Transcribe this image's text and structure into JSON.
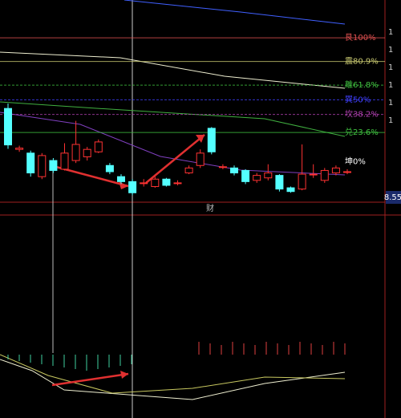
{
  "chart_data": {
    "type": "candlestick",
    "ylim": [
      -32.6,
      130.5
    ],
    "yticks": [
      {
        "value": 100,
        "label": "艮100%"
      },
      {
        "value": 80.9,
        "label": "震80.9%"
      },
      {
        "value": 61.8,
        "label": "離61.8%"
      },
      {
        "value": 50,
        "label": "巽50%"
      },
      {
        "value": 38.2,
        "label": "坎38.2%"
      },
      {
        "value": 23.6,
        "label": "兑23.6%"
      },
      {
        "value": 0,
        "label": "坤0%"
      }
    ],
    "level_colors": [
      "#e05050",
      "#c8c870",
      "#40c040",
      "#4040ff",
      "#b040b0",
      "#40c040",
      "#ffffff"
    ],
    "up_color": "#ff3232",
    "down_color": "#54ffff",
    "open": [
      43,
      10,
      7,
      -12,
      1,
      -6,
      1,
      4,
      8,
      -3,
      -12,
      -16,
      -17,
      -20,
      -14,
      -17,
      -9,
      -3,
      27,
      -4,
      -5,
      -7,
      -15,
      -13,
      -11,
      -21,
      -22,
      -10,
      -15,
      -9,
      -8
    ],
    "close": [
      13.6,
      11,
      -9,
      5,
      -7,
      7,
      14,
      10,
      16,
      -8,
      -16,
      -25,
      -17,
      -14,
      -19,
      -17,
      -5,
      7,
      8,
      -4,
      -9,
      -16,
      -11,
      -9,
      -22,
      -24,
      -10,
      -10,
      -7,
      -5,
      -8
    ],
    "high": [
      47,
      13,
      9,
      7,
      3,
      15,
      33,
      12,
      18,
      -1,
      -10,
      -14,
      -14,
      -12,
      -13,
      -15,
      -3,
      10,
      28,
      -2,
      -3,
      -6,
      -9,
      -2,
      -10,
      -20,
      14,
      -2,
      -5,
      -3,
      -6
    ],
    "low": [
      10.4,
      8,
      -12,
      -14,
      -9,
      -7,
      -1,
      1,
      7,
      -10,
      -18,
      -27,
      -20,
      -21,
      -20,
      -19,
      -10,
      -5,
      6,
      -6,
      -11,
      -18,
      -17,
      -15,
      -24,
      -25,
      -23,
      -13,
      -17,
      -11,
      -10
    ],
    "price_label": "8.55",
    "annotation": "财",
    "axis_marks": [
      "1",
      "1",
      "1",
      "1",
      "1",
      "1"
    ]
  }
}
